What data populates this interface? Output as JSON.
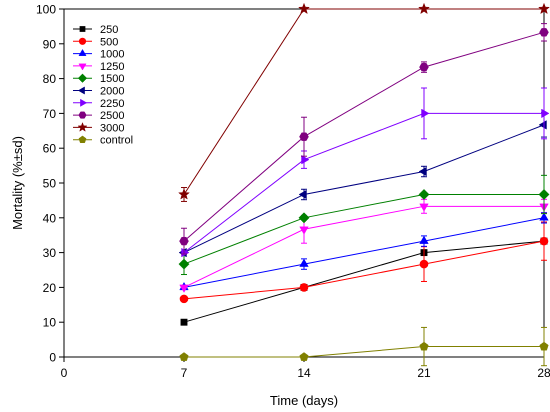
{
  "chart_data": {
    "type": "line",
    "xlabel": "Time (days)",
    "ylabel": "Mortality (%±sd)",
    "xlim": [
      0,
      28
    ],
    "ylim": [
      0,
      100
    ],
    "xticks": [
      0,
      7,
      14,
      21,
      28
    ],
    "yticks": [
      0,
      10,
      20,
      30,
      40,
      50,
      60,
      70,
      80,
      90,
      100
    ],
    "grid": false,
    "legend_position": "top-left",
    "x": [
      7,
      14,
      21,
      28
    ],
    "series": [
      {
        "name": "250",
        "color": "#000000",
        "marker": "square",
        "values": [
          10,
          20,
          30,
          33.3
        ],
        "sd": [
          0,
          0,
          0,
          0
        ]
      },
      {
        "name": "500",
        "color": "#ff0000",
        "marker": "circle",
        "values": [
          16.7,
          20,
          26.7,
          33.3
        ],
        "sd": [
          0,
          0,
          5,
          5.5
        ]
      },
      {
        "name": "1000",
        "color": "#0000ff",
        "marker": "triangle-up",
        "values": [
          20,
          26.7,
          33.3,
          40
        ],
        "sd": [
          0,
          1.5,
          1.5,
          1.5
        ]
      },
      {
        "name": "1250",
        "color": "#ff00ff",
        "marker": "triangle-down",
        "values": [
          20,
          36.7,
          43.3,
          43.3
        ],
        "sd": [
          0,
          4,
          2,
          2
        ]
      },
      {
        "name": "1500",
        "color": "#008000",
        "marker": "diamond",
        "values": [
          26.7,
          40,
          46.7,
          46.7
        ],
        "sd": [
          3,
          0,
          0,
          5.5
        ]
      },
      {
        "name": "2000",
        "color": "#000080",
        "marker": "triangle-left",
        "values": [
          30,
          46.7,
          53.3,
          66.7
        ],
        "sd": [
          0,
          1.5,
          1.5,
          3.5
        ]
      },
      {
        "name": "2250",
        "color": "#8000ff",
        "marker": "triangle-right",
        "values": [
          30,
          56.7,
          70,
          70
        ],
        "sd": [
          0,
          2.5,
          7.3,
          7.3
        ]
      },
      {
        "name": "2500",
        "color": "#800080",
        "marker": "hexagon",
        "values": [
          33.3,
          63.3,
          83.3,
          93.3
        ],
        "sd": [
          3.7,
          5.6,
          1.5,
          2.5
        ]
      },
      {
        "name": "3000",
        "color": "#800000",
        "marker": "star",
        "values": [
          46.7,
          100,
          100,
          100
        ],
        "sd": [
          2,
          0,
          0,
          0
        ]
      },
      {
        "name": "control",
        "color": "#808000",
        "marker": "pentagon",
        "values": [
          0,
          0,
          3,
          3
        ],
        "sd": [
          0,
          0,
          5.5,
          5.5
        ]
      }
    ]
  }
}
